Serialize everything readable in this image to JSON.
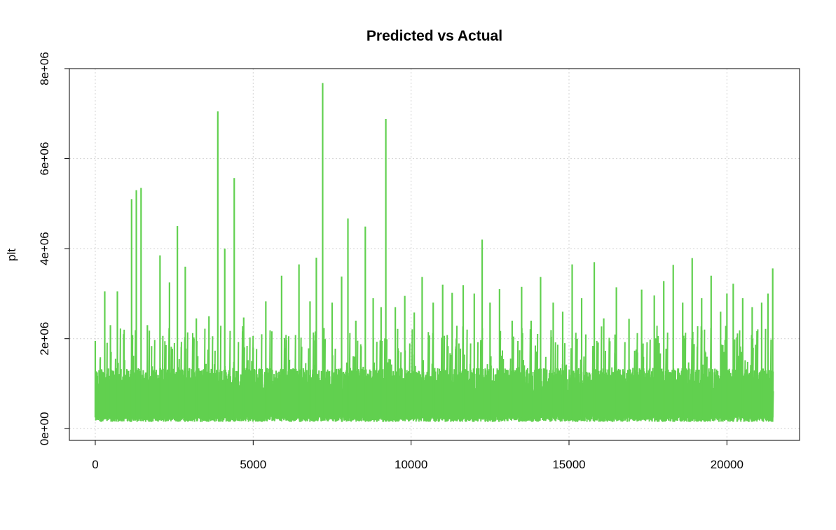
{
  "chart_data": {
    "type": "line",
    "title": "Predicted vs Actual",
    "xlabel": "",
    "ylabel": "plt",
    "xlim": [
      -820,
      22300
    ],
    "ylim": [
      -260000,
      8000000
    ],
    "x_ticks": [
      0,
      5000,
      10000,
      15000,
      20000
    ],
    "x_tick_labels": [
      "0",
      "5000",
      "10000",
      "15000",
      "20000"
    ],
    "y_ticks": [
      0,
      2000000,
      4000000,
      6000000,
      8000000
    ],
    "y_tick_labels": [
      "0e+00",
      "2e+06",
      "4e+06",
      "6e+06",
      "8e+06"
    ],
    "grid": true,
    "legend": "none",
    "n_points": 21450,
    "series": [
      {
        "color": "#61D04F",
        "x": [
          0,
          120,
          300,
          480,
          700,
          900,
          1150,
          1300,
          1450,
          1650,
          2050,
          2350,
          2600,
          2850,
          3200,
          3600,
          3880,
          4100,
          4400,
          4700,
          5000,
          5400,
          5900,
          6450,
          6800,
          7000,
          7200,
          7500,
          7800,
          8000,
          8250,
          8550,
          8800,
          9050,
          9200,
          9500,
          9800,
          10100,
          10350,
          10700,
          11000,
          11300,
          11650,
          12000,
          12250,
          12500,
          12800,
          13200,
          13500,
          13800,
          14100,
          14500,
          14800,
          15100,
          15400,
          15800,
          16100,
          16500,
          16900,
          17300,
          17700,
          18000,
          18300,
          18600,
          18900,
          19200,
          19500,
          19800,
          20000,
          20200,
          20500,
          20800,
          21100,
          21300,
          21450
        ],
        "y": [
          1950000,
          1300000,
          3050000,
          2300000,
          3050000,
          2100000,
          5100000,
          5300000,
          5350000,
          2300000,
          3850000,
          3250000,
          4500000,
          3600000,
          2450000,
          2500000,
          7050000,
          4000000,
          5570000,
          2470000,
          1800000,
          2830000,
          3400000,
          3650000,
          2830000,
          3800000,
          7680000,
          2800000,
          3380000,
          4670000,
          2400000,
          4490000,
          2900000,
          2700000,
          6880000,
          2700000,
          2950000,
          2580000,
          3370000,
          2800000,
          3200000,
          3020000,
          3190000,
          3000000,
          4200000,
          2800000,
          3100000,
          2400000,
          3150000,
          2400000,
          3370000,
          2800000,
          2600000,
          3650000,
          2900000,
          3700000,
          2450000,
          3140000,
          2440000,
          3090000,
          2960000,
          3280000,
          3640000,
          2800000,
          3790000,
          2900000,
          3400000,
          2600000,
          3000000,
          3220000,
          2900000,
          2700000,
          2800000,
          3000000,
          3560000
        ]
      }
    ]
  }
}
